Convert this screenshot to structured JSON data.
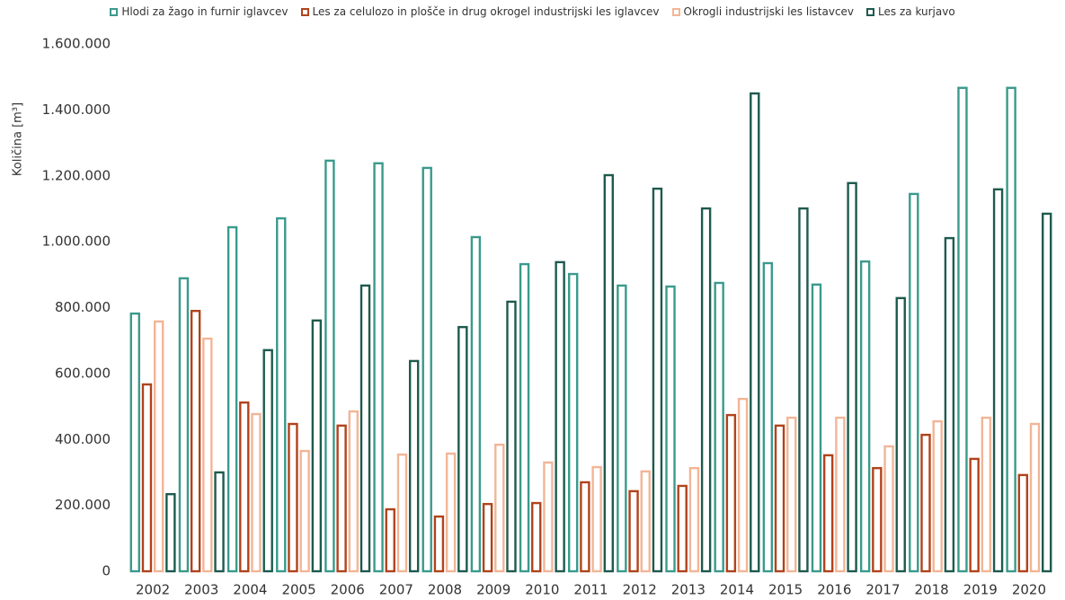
{
  "chart_data": {
    "type": "bar",
    "y_label": "Količina [m³]",
    "categories": [
      "2002",
      "2003",
      "2004",
      "2005",
      "2006",
      "2007",
      "2008",
      "2009",
      "2010",
      "2011",
      "2012",
      "2013",
      "2014",
      "2015",
      "2016",
      "2017",
      "2018",
      "2019",
      "2020"
    ],
    "series": [
      {
        "name": "Hlodi za žago in furnir iglavcev",
        "color": "#3a9a8c",
        "values": [
          782000,
          889000,
          1044000,
          1071000,
          1246000,
          1238000,
          1224000,
          1014000,
          932000,
          902000,
          867000,
          864000,
          875000,
          935000,
          870000,
          940000,
          1145000,
          1467000,
          1467000
        ]
      },
      {
        "name": "Les za celulozo in plošče in drug okrogel industrijski les iglavcev",
        "color": "#b0431c",
        "values": [
          567000,
          790000,
          512000,
          447000,
          442000,
          188000,
          166000,
          204000,
          207000,
          270000,
          243000,
          259000,
          474000,
          442000,
          352000,
          313000,
          414000,
          341000,
          292000
        ]
      },
      {
        "name": "Okrogli industrijski les listavcev",
        "color": "#f2b596",
        "values": [
          758000,
          706000,
          477000,
          365000,
          485000,
          354000,
          357000,
          384000,
          330000,
          316000,
          303000,
          313000,
          523000,
          466000,
          466000,
          379000,
          455000,
          466000,
          447000
        ]
      },
      {
        "name": "Les za kurjavo",
        "color": "#1e5a4e",
        "values": [
          234000,
          300000,
          671000,
          761000,
          867000,
          638000,
          741000,
          818000,
          938000,
          1202000,
          1161000,
          1101000,
          1450000,
          1101000,
          1178000,
          829000,
          1011000,
          1159000,
          1085000
        ]
      }
    ],
    "ylim": [
      0,
      1600000
    ],
    "yticks": [
      0,
      {
        "value": 200000,
        "label": "200.000"
      },
      {
        "value": 400000,
        "label": "400.000"
      },
      {
        "value": 600000,
        "label": "600.000"
      },
      {
        "value": 800000,
        "label": "800.000"
      },
      {
        "value": 1000000,
        "label": "1.000.000"
      },
      {
        "value": 1200000,
        "label": "1.200.000"
      },
      {
        "value": 1400000,
        "label": "1.400.000"
      },
      {
        "value": 1600000,
        "label": "1.600.000"
      }
    ],
    "legend": "top"
  }
}
